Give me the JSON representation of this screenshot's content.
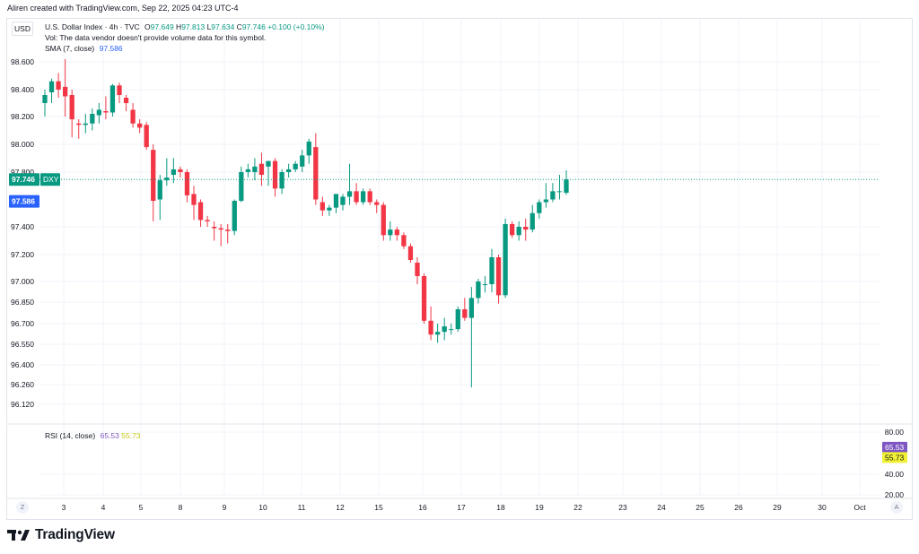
{
  "caption": "Aliren created with TradingView.com, Sep 22, 2025 04:23 UTC-4",
  "currency_button": "USD",
  "legend": {
    "title": "U.S. Dollar Index · 4h · TVC",
    "o_label": "O",
    "o_value": "97.649",
    "h_label": "H",
    "h_value": "97.813",
    "l_label": "L",
    "l_value": "97.634",
    "c_label": "C",
    "c_value": "97.746",
    "change": "+0.100 (+0.10%)",
    "vol_note": "Vol: The data vendor doesn't provide volume data for this symbol.",
    "sma_label": "SMA (7, close)",
    "sma_value": "97.586"
  },
  "rsi_legend": {
    "label": "RSI (14, close)",
    "v1": "65.53",
    "v2": "55.73"
  },
  "corner_left": "Z",
  "corner_right": "A",
  "brand": "TradingView",
  "colors": {
    "up": "#089981",
    "down": "#f23645",
    "sma_badge": "#2962ff",
    "rsi_line": "#7e57c2",
    "rsi_ma": "#f0f034",
    "grid": "#f0f3fa"
  },
  "chart_data": [
    {
      "type": "candlestick",
      "symbol": "DXY",
      "interval": "4h",
      "y_ticks": [
        "98.600",
        "98.400",
        "98.200",
        "98.000",
        "97.800",
        "97.400",
        "97.200",
        "97.000",
        "96.850",
        "96.700",
        "96.550",
        "96.400",
        "96.260",
        "96.120"
      ],
      "x_ticks": [
        "3",
        "4",
        "5",
        "8",
        "9",
        "10",
        "11",
        "12",
        "15",
        "16",
        "17",
        "18",
        "19",
        "22",
        "23",
        "24",
        "25",
        "26",
        "29",
        "30",
        "Oct"
      ],
      "last_price": {
        "value": "97.746",
        "label": "DXY"
      },
      "sma": {
        "label": "SMA (7, close)",
        "value": "97.586"
      },
      "candles": [
        {
          "d": "2",
          "o": 98.3,
          "h": 98.4,
          "l": 98.2,
          "c": 98.36
        },
        {
          "d": "2",
          "o": 98.38,
          "h": 98.48,
          "l": 98.3,
          "c": 98.46
        },
        {
          "d": "2",
          "o": 98.46,
          "h": 98.52,
          "l": 98.34,
          "c": 98.4
        },
        {
          "d": "3",
          "o": 98.42,
          "h": 98.62,
          "l": 98.2,
          "c": 98.35
        },
        {
          "d": "3",
          "o": 98.36,
          "h": 98.4,
          "l": 98.05,
          "c": 98.18
        },
        {
          "d": "3",
          "o": 98.15,
          "h": 98.18,
          "l": 98.04,
          "c": 98.14
        },
        {
          "d": "3",
          "o": 98.14,
          "h": 98.22,
          "l": 98.08,
          "c": 98.15
        },
        {
          "d": "3",
          "o": 98.15,
          "h": 98.26,
          "l": 98.1,
          "c": 98.22
        },
        {
          "d": "4",
          "o": 98.21,
          "h": 98.3,
          "l": 98.15,
          "c": 98.25
        },
        {
          "d": "4",
          "o": 98.24,
          "h": 98.35,
          "l": 98.18,
          "c": 98.23
        },
        {
          "d": "4",
          "o": 98.23,
          "h": 98.44,
          "l": 98.2,
          "c": 98.43
        },
        {
          "d": "4",
          "o": 98.43,
          "h": 98.45,
          "l": 98.3,
          "c": 98.36
        },
        {
          "d": "4",
          "o": 98.34,
          "h": 98.36,
          "l": 98.24,
          "c": 98.3
        },
        {
          "d": "4",
          "o": 98.25,
          "h": 98.3,
          "l": 98.12,
          "c": 98.15
        },
        {
          "d": "5",
          "o": 98.15,
          "h": 98.18,
          "l": 98.08,
          "c": 98.12
        },
        {
          "d": "5",
          "o": 98.14,
          "h": 98.16,
          "l": 97.96,
          "c": 97.98
        },
        {
          "d": "5",
          "o": 97.96,
          "h": 98.0,
          "l": 97.44,
          "c": 97.59
        },
        {
          "d": "5",
          "o": 97.6,
          "h": 97.78,
          "l": 97.45,
          "c": 97.74
        },
        {
          "d": "5",
          "o": 97.74,
          "h": 97.9,
          "l": 97.7,
          "c": 97.76
        },
        {
          "d": "5",
          "o": 97.78,
          "h": 97.9,
          "l": 97.72,
          "c": 97.82
        },
        {
          "d": "8",
          "o": 97.82,
          "h": 97.84,
          "l": 97.76,
          "c": 97.8
        },
        {
          "d": "8",
          "o": 97.8,
          "h": 97.82,
          "l": 97.58,
          "c": 97.63
        },
        {
          "d": "8",
          "o": 97.64,
          "h": 97.7,
          "l": 97.45,
          "c": 97.56
        },
        {
          "d": "8",
          "o": 97.58,
          "h": 97.6,
          "l": 97.4,
          "c": 97.45
        },
        {
          "d": "8",
          "o": 97.45,
          "h": 97.48,
          "l": 97.4,
          "c": 97.44
        },
        {
          "d": "9",
          "o": 97.4,
          "h": 97.44,
          "l": 97.3,
          "c": 97.39
        },
        {
          "d": "9",
          "o": 97.39,
          "h": 97.42,
          "l": 97.26,
          "c": 97.38
        },
        {
          "d": "9",
          "o": 97.38,
          "h": 97.42,
          "l": 97.28,
          "c": 97.37
        },
        {
          "d": "9",
          "o": 97.37,
          "h": 97.6,
          "l": 97.34,
          "c": 97.59
        },
        {
          "d": "9",
          "o": 97.59,
          "h": 97.84,
          "l": 97.58,
          "c": 97.8
        },
        {
          "d": "9",
          "o": 97.8,
          "h": 97.86,
          "l": 97.76,
          "c": 97.82
        },
        {
          "d": "10",
          "o": 97.8,
          "h": 97.9,
          "l": 97.74,
          "c": 97.84
        },
        {
          "d": "10",
          "o": 97.86,
          "h": 97.94,
          "l": 97.7,
          "c": 97.78
        },
        {
          "d": "10",
          "o": 97.84,
          "h": 97.88,
          "l": 97.7,
          "c": 97.88
        },
        {
          "d": "10",
          "o": 97.88,
          "h": 97.9,
          "l": 97.62,
          "c": 97.68
        },
        {
          "d": "10",
          "o": 97.68,
          "h": 97.82,
          "l": 97.64,
          "c": 97.8
        },
        {
          "d": "10",
          "o": 97.8,
          "h": 97.86,
          "l": 97.76,
          "c": 97.82
        },
        {
          "d": "11",
          "o": 97.82,
          "h": 97.88,
          "l": 97.8,
          "c": 97.86
        },
        {
          "d": "11",
          "o": 97.84,
          "h": 97.96,
          "l": 97.8,
          "c": 97.92
        },
        {
          "d": "11",
          "o": 97.92,
          "h": 98.04,
          "l": 97.86,
          "c": 98.02
        },
        {
          "d": "11",
          "o": 97.98,
          "h": 98.08,
          "l": 97.56,
          "c": 97.6
        },
        {
          "d": "11",
          "o": 97.58,
          "h": 97.62,
          "l": 97.48,
          "c": 97.52
        },
        {
          "d": "12",
          "o": 97.52,
          "h": 97.56,
          "l": 97.48,
          "c": 97.54
        },
        {
          "d": "12",
          "o": 97.54,
          "h": 97.64,
          "l": 97.5,
          "c": 97.64
        },
        {
          "d": "12",
          "o": 97.56,
          "h": 97.64,
          "l": 97.52,
          "c": 97.62
        },
        {
          "d": "12",
          "o": 97.62,
          "h": 97.86,
          "l": 97.56,
          "c": 97.66
        },
        {
          "d": "12",
          "o": 97.66,
          "h": 97.72,
          "l": 97.56,
          "c": 97.58
        },
        {
          "d": "12",
          "o": 97.58,
          "h": 97.68,
          "l": 97.56,
          "c": 97.66
        },
        {
          "d": "15",
          "o": 97.66,
          "h": 97.68,
          "l": 97.56,
          "c": 97.58
        },
        {
          "d": "15",
          "o": 97.58,
          "h": 97.6,
          "l": 97.5,
          "c": 97.56
        },
        {
          "d": "15",
          "o": 97.56,
          "h": 97.58,
          "l": 97.3,
          "c": 97.34
        },
        {
          "d": "15",
          "o": 97.34,
          "h": 97.44,
          "l": 97.3,
          "c": 97.38
        },
        {
          "d": "15",
          "o": 97.38,
          "h": 97.4,
          "l": 97.3,
          "c": 97.34
        },
        {
          "d": "16",
          "o": 97.34,
          "h": 97.36,
          "l": 97.24,
          "c": 97.26
        },
        {
          "d": "16",
          "o": 97.26,
          "h": 97.28,
          "l": 97.14,
          "c": 97.16
        },
        {
          "d": "16",
          "o": 97.14,
          "h": 97.18,
          "l": 96.98,
          "c": 97.04
        },
        {
          "d": "16",
          "o": 97.04,
          "h": 97.06,
          "l": 96.7,
          "c": 96.72
        },
        {
          "d": "16",
          "o": 96.72,
          "h": 96.82,
          "l": 96.58,
          "c": 96.62
        },
        {
          "d": "16",
          "o": 96.62,
          "h": 96.7,
          "l": 96.56,
          "c": 96.64
        },
        {
          "d": "17",
          "o": 96.64,
          "h": 96.74,
          "l": 96.58,
          "c": 96.68
        },
        {
          "d": "17",
          "o": 96.66,
          "h": 96.7,
          "l": 96.62,
          "c": 96.66
        },
        {
          "d": "17",
          "o": 96.66,
          "h": 96.82,
          "l": 96.64,
          "c": 96.8
        },
        {
          "d": "17",
          "o": 96.8,
          "h": 96.88,
          "l": 96.72,
          "c": 96.74
        },
        {
          "d": "17",
          "o": 96.74,
          "h": 96.96,
          "l": 96.24,
          "c": 96.88
        },
        {
          "d": "17",
          "o": 96.88,
          "h": 97.02,
          "l": 96.84,
          "c": 97.0
        },
        {
          "d": "18",
          "o": 96.98,
          "h": 97.04,
          "l": 96.92,
          "c": 96.98
        },
        {
          "d": "18",
          "o": 96.98,
          "h": 97.24,
          "l": 96.92,
          "c": 97.18
        },
        {
          "d": "18",
          "o": 97.18,
          "h": 97.2,
          "l": 96.84,
          "c": 96.9
        },
        {
          "d": "18",
          "o": 96.9,
          "h": 97.46,
          "l": 96.88,
          "c": 97.42
        },
        {
          "d": "18",
          "o": 97.42,
          "h": 97.44,
          "l": 97.32,
          "c": 97.34
        },
        {
          "d": "19",
          "o": 97.34,
          "h": 97.44,
          "l": 97.3,
          "c": 97.4
        },
        {
          "d": "19",
          "o": 97.4,
          "h": 97.46,
          "l": 97.3,
          "c": 97.38
        },
        {
          "d": "19",
          "o": 97.38,
          "h": 97.56,
          "l": 97.36,
          "c": 97.5
        },
        {
          "d": "19",
          "o": 97.5,
          "h": 97.6,
          "l": 97.46,
          "c": 97.58
        },
        {
          "d": "19",
          "o": 97.58,
          "h": 97.72,
          "l": 97.54,
          "c": 97.6
        },
        {
          "d": "19",
          "o": 97.6,
          "h": 97.72,
          "l": 97.58,
          "c": 97.66
        },
        {
          "d": "19",
          "o": 97.66,
          "h": 97.78,
          "l": 97.6,
          "c": 97.66
        },
        {
          "d": "22",
          "o": 97.649,
          "h": 97.813,
          "l": 97.634,
          "c": 97.746
        }
      ]
    },
    {
      "type": "line",
      "name": "RSI (14, close)",
      "y_ticks": [
        "80.00",
        "40.00",
        "20.00"
      ],
      "last_values": [
        "65.53",
        "55.73"
      ]
    }
  ]
}
